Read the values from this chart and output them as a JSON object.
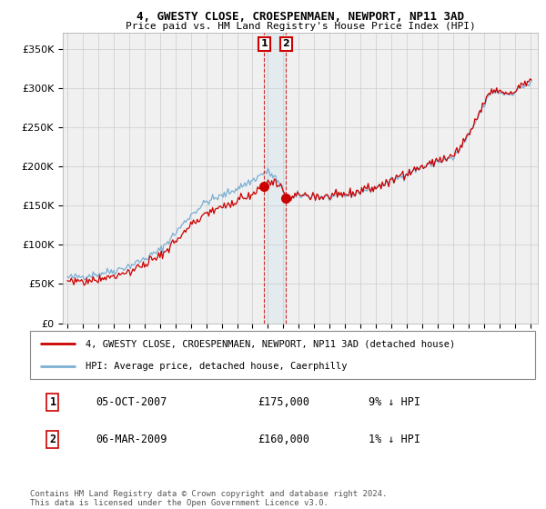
{
  "title1": "4, GWESTY CLOSE, CROESPENMAEN, NEWPORT, NP11 3AD",
  "title2": "Price paid vs. HM Land Registry's House Price Index (HPI)",
  "ylabel_ticks": [
    "£0",
    "£50K",
    "£100K",
    "£150K",
    "£200K",
    "£250K",
    "£300K",
    "£350K"
  ],
  "ytick_values": [
    0,
    50000,
    100000,
    150000,
    200000,
    250000,
    300000,
    350000
  ],
  "ylim": [
    0,
    370000
  ],
  "xlim_start": 1994.7,
  "xlim_end": 2025.5,
  "marker1_date": 2007.75,
  "marker2_date": 2009.17,
  "marker1_price": 175000,
  "marker2_price": 160000,
  "legend_line1": "4, GWESTY CLOSE, CROESPENMAEN, NEWPORT, NP11 3AD (detached house)",
  "legend_line2": "HPI: Average price, detached house, Caerphilly",
  "table_row1_num": "1",
  "table_row1_date": "05-OCT-2007",
  "table_row1_price": "£175,000",
  "table_row1_hpi": "9% ↓ HPI",
  "table_row2_num": "2",
  "table_row2_date": "06-MAR-2009",
  "table_row2_price": "£160,000",
  "table_row2_hpi": "1% ↓ HPI",
  "footnote": "Contains HM Land Registry data © Crown copyright and database right 2024.\nThis data is licensed under the Open Government Licence v3.0.",
  "line_color_red": "#cc0000",
  "line_color_blue": "#7bafd4",
  "background_color": "#ffffff",
  "grid_color": "#cccccc",
  "chart_bg": "#f0f0f0"
}
